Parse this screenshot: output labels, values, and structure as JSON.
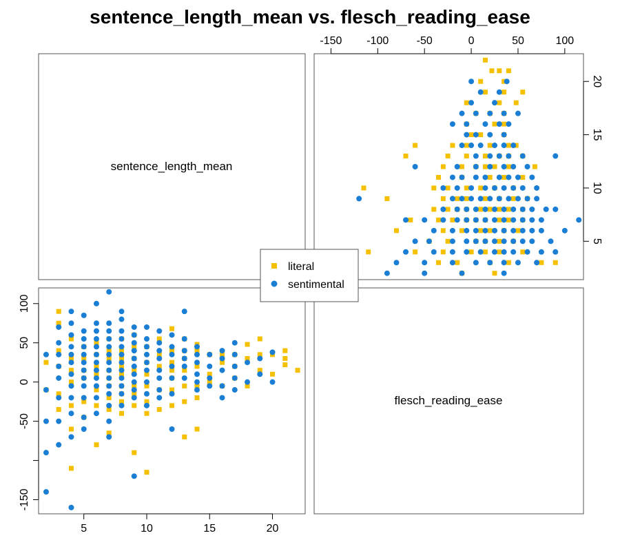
{
  "chart_data": {
    "type": "scatter",
    "title": "sentence_length_mean vs. flesch_reading_ease",
    "variables": [
      "sentence_length_mean",
      "flesch_reading_ease"
    ],
    "axes": {
      "sentence_length_mean": {
        "range": [
          1.4,
          22.6
        ],
        "ticks": [
          5,
          10,
          15,
          20
        ]
      },
      "flesch_reading_ease": {
        "range": [
          -168,
          120
        ],
        "ticks": [
          -150,
          -100,
          -50,
          0,
          50,
          100
        ],
        "bottom_left_ticks": [
          -150,
          -50,
          0,
          50,
          100
        ]
      }
    },
    "legend": {
      "position": "center",
      "entries": [
        "literal",
        "sentimental"
      ]
    },
    "series": [
      {
        "name": "literal",
        "color": "#F5C000",
        "marker": "square",
        "points": [
          [
            22,
            15
          ],
          [
            21,
            22
          ],
          [
            21,
            40
          ],
          [
            21,
            30
          ],
          [
            20,
            10
          ],
          [
            20,
            35
          ],
          [
            19,
            55
          ],
          [
            19,
            35
          ],
          [
            19,
            15
          ],
          [
            18,
            48
          ],
          [
            18,
            30
          ],
          [
            18,
            -5
          ],
          [
            17,
            35
          ],
          [
            17,
            20
          ],
          [
            17,
            5
          ],
          [
            16,
            25
          ],
          [
            16,
            -5
          ],
          [
            16,
            35
          ],
          [
            15,
            35
          ],
          [
            15,
            10
          ],
          [
            15,
            0
          ],
          [
            14,
            48
          ],
          [
            14,
            40
          ],
          [
            14,
            20
          ],
          [
            14,
            -5
          ],
          [
            14,
            -20
          ],
          [
            14,
            -60
          ],
          [
            13,
            55
          ],
          [
            13,
            40
          ],
          [
            13,
            30
          ],
          [
            13,
            15
          ],
          [
            13,
            -5
          ],
          [
            13,
            -25
          ],
          [
            13,
            -70
          ],
          [
            12,
            68
          ],
          [
            12,
            40
          ],
          [
            12,
            25
          ],
          [
            12,
            15
          ],
          [
            12,
            5
          ],
          [
            12,
            -10
          ],
          [
            12,
            -30
          ],
          [
            11,
            55
          ],
          [
            11,
            35
          ],
          [
            11,
            20
          ],
          [
            11,
            -10
          ],
          [
            11,
            -35
          ],
          [
            10,
            45
          ],
          [
            10,
            25
          ],
          [
            10,
            10
          ],
          [
            10,
            -5
          ],
          [
            10,
            -25
          ],
          [
            10,
            -40
          ],
          [
            10,
            -115
          ],
          [
            9,
            60
          ],
          [
            9,
            45
          ],
          [
            9,
            30
          ],
          [
            9,
            15
          ],
          [
            9,
            -5
          ],
          [
            9,
            -15
          ],
          [
            9,
            -30
          ],
          [
            9,
            -90
          ],
          [
            8,
            55
          ],
          [
            8,
            40
          ],
          [
            8,
            30
          ],
          [
            8,
            20
          ],
          [
            8,
            10
          ],
          [
            8,
            -5
          ],
          [
            8,
            -15
          ],
          [
            8,
            -25
          ],
          [
            8,
            -40
          ],
          [
            7,
            55
          ],
          [
            7,
            40
          ],
          [
            7,
            30
          ],
          [
            7,
            15
          ],
          [
            7,
            5
          ],
          [
            7,
            -5
          ],
          [
            7,
            -20
          ],
          [
            7,
            -35
          ],
          [
            7,
            -65
          ],
          [
            6,
            50
          ],
          [
            6,
            35
          ],
          [
            6,
            20
          ],
          [
            6,
            10
          ],
          [
            6,
            -10
          ],
          [
            6,
            -30
          ],
          [
            6,
            -80
          ],
          [
            5,
            45
          ],
          [
            5,
            30
          ],
          [
            5,
            15
          ],
          [
            5,
            5
          ],
          [
            5,
            -25
          ],
          [
            5,
            -45
          ],
          [
            4,
            55
          ],
          [
            4,
            30
          ],
          [
            4,
            15
          ],
          [
            4,
            0
          ],
          [
            4,
            -30
          ],
          [
            4,
            -60
          ],
          [
            4,
            -110
          ],
          [
            3,
            90
          ],
          [
            3,
            75
          ],
          [
            3,
            40
          ],
          [
            3,
            20
          ],
          [
            3,
            -15
          ],
          [
            3,
            -35
          ],
          [
            2,
            25
          ],
          [
            2,
            -10
          ]
        ]
      },
      {
        "name": "sentimental",
        "color": "#1A7FD4",
        "marker": "circle",
        "points": [
          [
            20,
            38
          ],
          [
            20,
            0
          ],
          [
            19,
            30
          ],
          [
            19,
            10
          ],
          [
            18,
            25
          ],
          [
            18,
            0
          ],
          [
            17,
            50
          ],
          [
            17,
            35
          ],
          [
            17,
            20
          ],
          [
            17,
            5
          ],
          [
            17,
            -10
          ],
          [
            16,
            40
          ],
          [
            16,
            30
          ],
          [
            16,
            15
          ],
          [
            16,
            -5
          ],
          [
            16,
            -20
          ],
          [
            15,
            35
          ],
          [
            15,
            20
          ],
          [
            15,
            5
          ],
          [
            15,
            -5
          ],
          [
            14,
            45
          ],
          [
            14,
            35
          ],
          [
            14,
            25
          ],
          [
            14,
            10
          ],
          [
            14,
            0
          ],
          [
            14,
            -10
          ],
          [
            13,
            90
          ],
          [
            13,
            55
          ],
          [
            13,
            40
          ],
          [
            13,
            30
          ],
          [
            13,
            20
          ],
          [
            13,
            5
          ],
          [
            12,
            60
          ],
          [
            12,
            45
          ],
          [
            12,
            35
          ],
          [
            12,
            20
          ],
          [
            12,
            5
          ],
          [
            12,
            -15
          ],
          [
            12,
            -60
          ],
          [
            11,
            65
          ],
          [
            11,
            50
          ],
          [
            11,
            40
          ],
          [
            11,
            30
          ],
          [
            11,
            15
          ],
          [
            11,
            5
          ],
          [
            11,
            -10
          ],
          [
            11,
            -20
          ],
          [
            10,
            70
          ],
          [
            10,
            55
          ],
          [
            10,
            45
          ],
          [
            10,
            35
          ],
          [
            10,
            25
          ],
          [
            10,
            15
          ],
          [
            10,
            0
          ],
          [
            10,
            -15
          ],
          [
            10,
            -30
          ],
          [
            9,
            70
          ],
          [
            9,
            60
          ],
          [
            9,
            50
          ],
          [
            9,
            40
          ],
          [
            9,
            30
          ],
          [
            9,
            20
          ],
          [
            9,
            10
          ],
          [
            9,
            0
          ],
          [
            9,
            -10
          ],
          [
            9,
            -20
          ],
          [
            9,
            -120
          ],
          [
            8,
            90
          ],
          [
            8,
            80
          ],
          [
            8,
            65
          ],
          [
            8,
            55
          ],
          [
            8,
            45
          ],
          [
            8,
            35
          ],
          [
            8,
            25
          ],
          [
            8,
            15
          ],
          [
            8,
            5
          ],
          [
            8,
            -5
          ],
          [
            8,
            -15
          ],
          [
            8,
            -30
          ],
          [
            7,
            115
          ],
          [
            7,
            75
          ],
          [
            7,
            65
          ],
          [
            7,
            55
          ],
          [
            7,
            45
          ],
          [
            7,
            35
          ],
          [
            7,
            25
          ],
          [
            7,
            15
          ],
          [
            7,
            5
          ],
          [
            7,
            -5
          ],
          [
            7,
            -15
          ],
          [
            7,
            -30
          ],
          [
            7,
            -50
          ],
          [
            7,
            -70
          ],
          [
            6,
            100
          ],
          [
            6,
            75
          ],
          [
            6,
            65
          ],
          [
            6,
            55
          ],
          [
            6,
            45
          ],
          [
            6,
            35
          ],
          [
            6,
            25
          ],
          [
            6,
            15
          ],
          [
            6,
            5
          ],
          [
            6,
            -5
          ],
          [
            6,
            -20
          ],
          [
            6,
            -40
          ],
          [
            5,
            85
          ],
          [
            5,
            65
          ],
          [
            5,
            55
          ],
          [
            5,
            45
          ],
          [
            5,
            35
          ],
          [
            5,
            25
          ],
          [
            5,
            15
          ],
          [
            5,
            5
          ],
          [
            5,
            -5
          ],
          [
            5,
            -20
          ],
          [
            5,
            -45
          ],
          [
            5,
            -60
          ],
          [
            4,
            90
          ],
          [
            4,
            75
          ],
          [
            4,
            60
          ],
          [
            4,
            45
          ],
          [
            4,
            35
          ],
          [
            4,
            25
          ],
          [
            4,
            10
          ],
          [
            4,
            -5
          ],
          [
            4,
            -20
          ],
          [
            4,
            -40
          ],
          [
            4,
            -70
          ],
          [
            4,
            -160
          ],
          [
            3,
            70
          ],
          [
            3,
            50
          ],
          [
            3,
            35
          ],
          [
            3,
            20
          ],
          [
            3,
            5
          ],
          [
            3,
            -20
          ],
          [
            3,
            -50
          ],
          [
            3,
            -80
          ],
          [
            2,
            35
          ],
          [
            2,
            -10
          ],
          [
            2,
            -50
          ],
          [
            2,
            -90
          ],
          [
            2,
            -140
          ]
        ]
      }
    ]
  }
}
